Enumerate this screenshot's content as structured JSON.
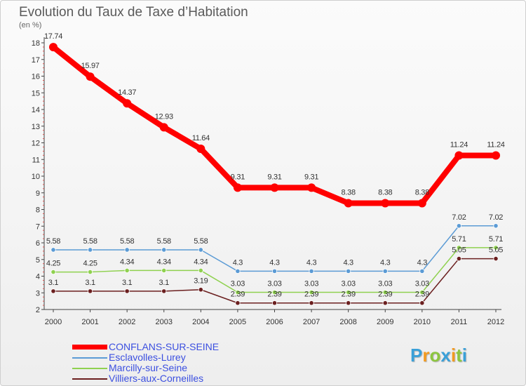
{
  "chart_data": {
    "type": "line",
    "title": "Evolution du Taux de Taxe d'Habitation",
    "ylabel": "(en %)",
    "xlabel": "",
    "ylim": [
      2,
      18
    ],
    "yticks": [
      "2",
      "3",
      "4",
      "5",
      "6",
      "7",
      "8",
      "9",
      "10",
      "11",
      "12",
      "13",
      "14",
      "15",
      "16",
      "17",
      "18"
    ],
    "categories": [
      "2000",
      "2001",
      "2002",
      "2003",
      "2004",
      "2005",
      "2006",
      "2007",
      "2008",
      "2009",
      "2010",
      "2011",
      "2012"
    ],
    "series": [
      {
        "name": "CONFLANS-SUR-SEINE",
        "color": "#ff0000",
        "values": [
          17.74,
          15.97,
          14.37,
          12.93,
          11.64,
          9.31,
          9.31,
          9.31,
          8.38,
          8.38,
          8.38,
          11.24,
          11.24
        ],
        "labels": [
          "17.74",
          "15.97",
          "14.37",
          "12.93",
          "11.64",
          "9.31",
          "9.31",
          "9.31",
          "8.38",
          "8.38",
          "8.38",
          "11.24",
          "11.24"
        ]
      },
      {
        "name": "Esclavolles-Lurey",
        "color": "#5b9bd5",
        "values": [
          5.58,
          5.58,
          5.58,
          5.58,
          5.58,
          4.3,
          4.3,
          4.3,
          4.3,
          4.3,
          4.3,
          7.02,
          7.02
        ],
        "labels": [
          "5.58",
          "5.58",
          "5.58",
          "5.58",
          "5.58",
          "4.3",
          "4.3",
          "4.3",
          "4.3",
          "4.3",
          "4.3",
          "7.02",
          "7.02"
        ]
      },
      {
        "name": "Marcilly-sur-Seine",
        "color": "#8fd14f",
        "values": [
          4.25,
          4.25,
          4.34,
          4.34,
          4.34,
          3.03,
          3.03,
          3.03,
          3.03,
          3.03,
          3.03,
          5.71,
          5.71
        ],
        "labels": [
          "4.25",
          "4.25",
          "4.34",
          "4.34",
          "4.34",
          "3.03",
          "3.03",
          "3.03",
          "3.03",
          "3.03",
          "3.03",
          "5.71",
          "5.71"
        ]
      },
      {
        "name": "Villiers-aux-Corneilles",
        "color": "#6b1f1f",
        "values": [
          3.1,
          3.1,
          3.1,
          3.1,
          3.19,
          2.39,
          2.39,
          2.39,
          2.39,
          2.39,
          2.39,
          5.05,
          5.05
        ],
        "labels": [
          "3.1",
          "3.1",
          "3.1",
          "3.1",
          "3.19",
          "2.39",
          "2.39",
          "2.39",
          "2.39",
          "2.39",
          "2.39",
          "5.05",
          "5.05"
        ]
      }
    ],
    "legend_position": "bottom-left",
    "grid": false
  },
  "header": {
    "title": "Evolution du Taux de Taxe d’Habitation",
    "unit": "(en %)"
  },
  "legend": {
    "items": [
      {
        "label": "CONFLANS-SUR-SEINE",
        "color": "#ff0000"
      },
      {
        "label": "Esclavolles-Lurey",
        "color": "#5b9bd5"
      },
      {
        "label": "Marcilly-sur-Seine",
        "color": "#8fd14f"
      },
      {
        "label": "Villiers-aux-Corneilles",
        "color": "#6b1f1f"
      }
    ]
  },
  "logo": {
    "letters": [
      "P",
      "r",
      "o",
      "x",
      "i",
      "t",
      "i"
    ],
    "colors": [
      "#3aa0d8",
      "#f29a1f",
      "#8cc63f",
      "#3aa0d8",
      "#f29a1f",
      "#8cc63f",
      "#3aa0d8"
    ]
  }
}
